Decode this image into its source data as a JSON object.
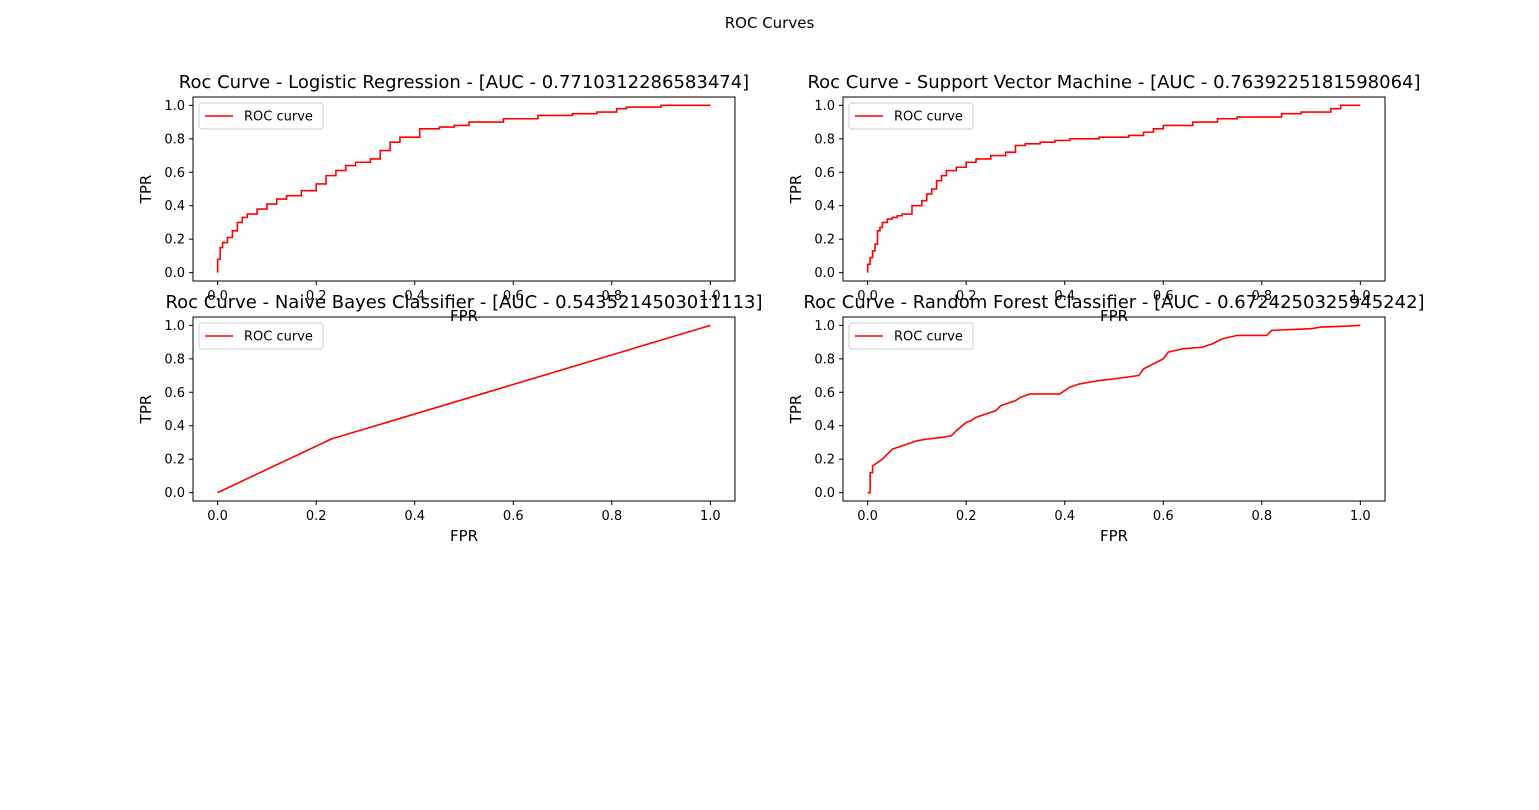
{
  "figure": {
    "suptitle": "ROC Curves",
    "line_color": "#ff0000"
  },
  "chart_data": [
    {
      "type": "line",
      "title": "Roc Curve - Logistic Regression - [AUC - 0.7710312286583474]",
      "xlabel": "FPR",
      "ylabel": "TPR",
      "xlim": [
        -0.05,
        1.05
      ],
      "ylim": [
        -0.05,
        1.05
      ],
      "xticks": [
        0.0,
        0.2,
        0.4,
        0.6,
        0.8,
        1.0
      ],
      "yticks": [
        0.0,
        0.2,
        0.4,
        0.6,
        0.8,
        1.0
      ],
      "xtick_labels": [
        "0.0",
        "0.2",
        "0.4",
        "0.6",
        "0.8",
        "1.0"
      ],
      "ytick_labels": [
        "0.0",
        "0.2",
        "0.4",
        "0.6",
        "0.8",
        "1.0"
      ],
      "legend": "upper left",
      "grid": false,
      "series": [
        {
          "name": "ROC curve",
          "color": "#ff0000",
          "x": [
            0.0,
            0.0,
            0.005,
            0.005,
            0.01,
            0.01,
            0.02,
            0.02,
            0.03,
            0.03,
            0.04,
            0.04,
            0.05,
            0.05,
            0.06,
            0.06,
            0.08,
            0.08,
            0.1,
            0.1,
            0.12,
            0.12,
            0.14,
            0.14,
            0.17,
            0.17,
            0.2,
            0.2,
            0.22,
            0.22,
            0.24,
            0.24,
            0.26,
            0.26,
            0.28,
            0.28,
            0.31,
            0.31,
            0.33,
            0.33,
            0.35,
            0.35,
            0.37,
            0.37,
            0.41,
            0.41,
            0.45,
            0.45,
            0.48,
            0.48,
            0.51,
            0.51,
            0.58,
            0.58,
            0.65,
            0.65,
            0.72,
            0.72,
            0.77,
            0.77,
            0.81,
            0.81,
            0.83,
            0.83,
            0.9,
            0.9,
            1.0
          ],
          "y": [
            0.0,
            0.08,
            0.08,
            0.15,
            0.15,
            0.18,
            0.18,
            0.21,
            0.21,
            0.25,
            0.25,
            0.3,
            0.3,
            0.33,
            0.33,
            0.35,
            0.35,
            0.38,
            0.38,
            0.41,
            0.41,
            0.44,
            0.44,
            0.46,
            0.46,
            0.49,
            0.49,
            0.53,
            0.53,
            0.58,
            0.58,
            0.61,
            0.61,
            0.64,
            0.64,
            0.66,
            0.66,
            0.68,
            0.68,
            0.73,
            0.73,
            0.78,
            0.78,
            0.81,
            0.81,
            0.86,
            0.86,
            0.87,
            0.87,
            0.88,
            0.88,
            0.9,
            0.9,
            0.92,
            0.92,
            0.94,
            0.94,
            0.95,
            0.95,
            0.96,
            0.96,
            0.98,
            0.98,
            0.99,
            0.99,
            1.0,
            1.0
          ]
        }
      ]
    },
    {
      "type": "line",
      "title": "Roc Curve - Support Vector Machine - [AUC - 0.7639225181598064]",
      "xlabel": "FPR",
      "ylabel": "TPR",
      "xlim": [
        -0.05,
        1.05
      ],
      "ylim": [
        -0.05,
        1.05
      ],
      "xticks": [
        0.0,
        0.2,
        0.4,
        0.6,
        0.8,
        1.0
      ],
      "yticks": [
        0.0,
        0.2,
        0.4,
        0.6,
        0.8,
        1.0
      ],
      "xtick_labels": [
        "0.0",
        "0.2",
        "0.4",
        "0.6",
        "0.8",
        "1.0"
      ],
      "ytick_labels": [
        "0.0",
        "0.2",
        "0.4",
        "0.6",
        "0.8",
        "1.0"
      ],
      "legend": "upper left",
      "grid": false,
      "series": [
        {
          "name": "ROC curve",
          "color": "#ff0000",
          "x": [
            0.0,
            0.0,
            0.005,
            0.005,
            0.01,
            0.01,
            0.015,
            0.015,
            0.02,
            0.02,
            0.025,
            0.025,
            0.03,
            0.03,
            0.04,
            0.04,
            0.05,
            0.05,
            0.06,
            0.06,
            0.07,
            0.07,
            0.09,
            0.09,
            0.11,
            0.11,
            0.12,
            0.12,
            0.13,
            0.13,
            0.14,
            0.14,
            0.15,
            0.15,
            0.16,
            0.16,
            0.18,
            0.18,
            0.2,
            0.2,
            0.22,
            0.22,
            0.25,
            0.25,
            0.28,
            0.28,
            0.3,
            0.3,
            0.32,
            0.32,
            0.35,
            0.35,
            0.38,
            0.38,
            0.41,
            0.41,
            0.47,
            0.47,
            0.53,
            0.53,
            0.56,
            0.56,
            0.58,
            0.58,
            0.6,
            0.6,
            0.66,
            0.66,
            0.71,
            0.71,
            0.75,
            0.75,
            0.84,
            0.84,
            0.88,
            0.88,
            0.94,
            0.94,
            0.96,
            0.96,
            1.0
          ],
          "y": [
            0.0,
            0.05,
            0.05,
            0.09,
            0.09,
            0.13,
            0.13,
            0.17,
            0.17,
            0.25,
            0.25,
            0.27,
            0.27,
            0.3,
            0.3,
            0.32,
            0.32,
            0.33,
            0.33,
            0.34,
            0.34,
            0.35,
            0.35,
            0.4,
            0.4,
            0.43,
            0.43,
            0.47,
            0.47,
            0.5,
            0.5,
            0.55,
            0.55,
            0.58,
            0.58,
            0.61,
            0.61,
            0.63,
            0.63,
            0.66,
            0.66,
            0.68,
            0.68,
            0.7,
            0.7,
            0.72,
            0.72,
            0.76,
            0.76,
            0.77,
            0.77,
            0.78,
            0.78,
            0.79,
            0.79,
            0.8,
            0.8,
            0.81,
            0.81,
            0.82,
            0.82,
            0.84,
            0.84,
            0.86,
            0.86,
            0.88,
            0.88,
            0.9,
            0.9,
            0.92,
            0.92,
            0.93,
            0.93,
            0.95,
            0.95,
            0.96,
            0.96,
            0.98,
            0.98,
            1.0,
            1.0
          ]
        }
      ]
    },
    {
      "type": "line",
      "title": "Roc Curve - Naive Bayes Classifier - [AUC - 0.5435214503011113]",
      "xlabel": "FPR",
      "ylabel": "TPR",
      "xlim": [
        -0.05,
        1.05
      ],
      "ylim": [
        -0.05,
        1.05
      ],
      "xticks": [
        0.0,
        0.2,
        0.4,
        0.6,
        0.8,
        1.0
      ],
      "yticks": [
        0.0,
        0.2,
        0.4,
        0.6,
        0.8,
        1.0
      ],
      "xtick_labels": [
        "0.0",
        "0.2",
        "0.4",
        "0.6",
        "0.8",
        "1.0"
      ],
      "ytick_labels": [
        "0.0",
        "0.2",
        "0.4",
        "0.6",
        "0.8",
        "1.0"
      ],
      "legend": "upper left",
      "grid": false,
      "series": [
        {
          "name": "ROC curve",
          "color": "#ff0000",
          "x": [
            0.0,
            0.23,
            1.0
          ],
          "y": [
            0.0,
            0.32,
            1.0
          ]
        }
      ]
    },
    {
      "type": "line",
      "title": "Roc Curve - Random Forest Classifier - [AUC - 0.6724250325945242]",
      "xlabel": "FPR",
      "ylabel": "TPR",
      "xlim": [
        -0.05,
        1.05
      ],
      "ylim": [
        -0.05,
        1.05
      ],
      "xticks": [
        0.0,
        0.2,
        0.4,
        0.6,
        0.8,
        1.0
      ],
      "yticks": [
        0.0,
        0.2,
        0.4,
        0.6,
        0.8,
        1.0
      ],
      "xtick_labels": [
        "0.0",
        "0.2",
        "0.4",
        "0.6",
        "0.8",
        "1.0"
      ],
      "ytick_labels": [
        "0.0",
        "0.2",
        "0.4",
        "0.6",
        "0.8",
        "1.0"
      ],
      "legend": "upper left",
      "grid": false,
      "series": [
        {
          "name": "ROC curve",
          "color": "#ff0000",
          "x": [
            0.0,
            0.005,
            0.005,
            0.01,
            0.01,
            0.02,
            0.03,
            0.04,
            0.05,
            0.06,
            0.08,
            0.1,
            0.12,
            0.15,
            0.17,
            0.18,
            0.2,
            0.21,
            0.22,
            0.24,
            0.26,
            0.27,
            0.3,
            0.31,
            0.33,
            0.39,
            0.41,
            0.43,
            0.45,
            0.47,
            0.5,
            0.55,
            0.56,
            0.58,
            0.6,
            0.61,
            0.64,
            0.68,
            0.7,
            0.72,
            0.75,
            0.78,
            0.81,
            0.82,
            0.9,
            0.92,
            0.97,
            1.0
          ],
          "y": [
            0.0,
            0.0,
            0.12,
            0.12,
            0.16,
            0.18,
            0.2,
            0.23,
            0.26,
            0.27,
            0.29,
            0.31,
            0.32,
            0.33,
            0.34,
            0.37,
            0.42,
            0.43,
            0.45,
            0.47,
            0.49,
            0.52,
            0.55,
            0.57,
            0.59,
            0.59,
            0.63,
            0.65,
            0.66,
            0.67,
            0.68,
            0.7,
            0.74,
            0.77,
            0.8,
            0.84,
            0.86,
            0.87,
            0.89,
            0.92,
            0.94,
            0.94,
            0.94,
            0.97,
            0.98,
            0.99,
            0.995,
            1.0
          ]
        }
      ]
    }
  ]
}
